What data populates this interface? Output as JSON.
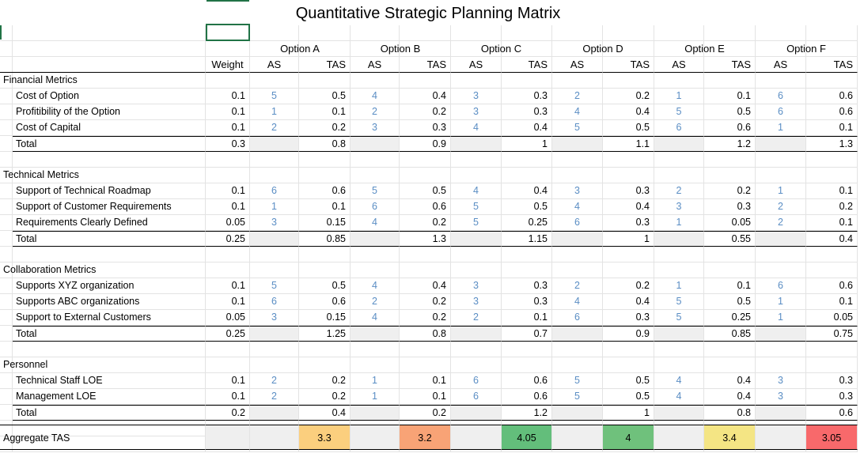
{
  "title": "Quantitative Strategic Planning Matrix",
  "header": {
    "weight": "Weight",
    "as": "AS",
    "tas": "TAS",
    "options": [
      "Option A",
      "Option B",
      "Option C",
      "Option D",
      "Option E",
      "Option F"
    ]
  },
  "colors": {
    "as_text": "#5b8ec4",
    "total_fill": "#efefef",
    "selection_border": "#217346"
  },
  "sections": [
    {
      "name": "Financial Metrics",
      "rows": [
        {
          "label": "Cost of Option",
          "weight": "0.1",
          "as": [
            "5",
            "4",
            "3",
            "2",
            "1",
            "6"
          ],
          "tas": [
            "0.5",
            "0.4",
            "0.3",
            "0.2",
            "0.1",
            "0.6"
          ]
        },
        {
          "label": "Profitibility of the Option",
          "weight": "0.1",
          "as": [
            "1",
            "2",
            "3",
            "4",
            "5",
            "6"
          ],
          "tas": [
            "0.1",
            "0.2",
            "0.3",
            "0.4",
            "0.5",
            "0.6"
          ]
        },
        {
          "label": "Cost of Capital",
          "weight": "0.1",
          "as": [
            "2",
            "3",
            "4",
            "5",
            "6",
            "1"
          ],
          "tas": [
            "0.2",
            "0.3",
            "0.4",
            "0.5",
            "0.6",
            "0.1"
          ]
        }
      ],
      "total": {
        "label": "Total",
        "weight": "0.3",
        "tas": [
          "0.8",
          "0.9",
          "1",
          "1.1",
          "1.2",
          "1.3"
        ]
      }
    },
    {
      "name": "Technical Metrics",
      "rows": [
        {
          "label": "Support of Technical Roadmap",
          "weight": "0.1",
          "as": [
            "6",
            "5",
            "4",
            "3",
            "2",
            "1"
          ],
          "tas": [
            "0.6",
            "0.5",
            "0.4",
            "0.3",
            "0.2",
            "0.1"
          ]
        },
        {
          "label": "Support of Customer Requirements",
          "weight": "0.1",
          "as": [
            "1",
            "6",
            "5",
            "4",
            "3",
            "2"
          ],
          "tas": [
            "0.1",
            "0.6",
            "0.5",
            "0.4",
            "0.3",
            "0.2"
          ]
        },
        {
          "label": "Requirements Clearly Defined",
          "weight": "0.05",
          "as": [
            "3",
            "4",
            "5",
            "6",
            "1",
            "2"
          ],
          "tas": [
            "0.15",
            "0.2",
            "0.25",
            "0.3",
            "0.05",
            "0.1"
          ]
        }
      ],
      "total": {
        "label": "Total",
        "weight": "0.25",
        "tas": [
          "0.85",
          "1.3",
          "1.15",
          "1",
          "0.55",
          "0.4"
        ]
      }
    },
    {
      "name": "Collaboration Metrics",
      "rows": [
        {
          "label": "Supports XYZ organization",
          "weight": "0.1",
          "as": [
            "5",
            "4",
            "3",
            "2",
            "1",
            "6"
          ],
          "tas": [
            "0.5",
            "0.4",
            "0.3",
            "0.2",
            "0.1",
            "0.6"
          ]
        },
        {
          "label": "Supports ABC organizations",
          "weight": "0.1",
          "as": [
            "6",
            "2",
            "3",
            "4",
            "5",
            "1"
          ],
          "tas": [
            "0.6",
            "0.2",
            "0.3",
            "0.4",
            "0.5",
            "0.1"
          ]
        },
        {
          "label": "Support to External Customers",
          "weight": "0.05",
          "as": [
            "3",
            "4",
            "2",
            "6",
            "5",
            "1"
          ],
          "tas": [
            "0.15",
            "0.2",
            "0.1",
            "0.3",
            "0.25",
            "0.05"
          ]
        }
      ],
      "total": {
        "label": "Total",
        "weight": "0.25",
        "tas": [
          "1.25",
          "0.8",
          "0.7",
          "0.9",
          "0.85",
          "0.75"
        ]
      }
    },
    {
      "name": "Personnel",
      "rows": [
        {
          "label": "Technical Staff LOE",
          "weight": "0.1",
          "as": [
            "2",
            "1",
            "6",
            "5",
            "4",
            "3"
          ],
          "tas": [
            "0.2",
            "0.1",
            "0.6",
            "0.5",
            "0.4",
            "0.3"
          ]
        },
        {
          "label": "Management LOE",
          "weight": "0.1",
          "as": [
            "2",
            "1",
            "6",
            "5",
            "4",
            "3"
          ],
          "tas": [
            "0.2",
            "0.1",
            "0.6",
            "0.5",
            "0.4",
            "0.3"
          ]
        }
      ],
      "total": {
        "label": "Total",
        "weight": "0.2",
        "tas": [
          "0.4",
          "0.2",
          "1.2",
          "1",
          "0.8",
          "0.6"
        ]
      }
    }
  ],
  "aggregate": {
    "label": "Aggregate TAS",
    "tas": [
      "3.3",
      "3.2",
      "4.05",
      "4",
      "3.4",
      "3.05"
    ],
    "colors": [
      "#fbcf7e",
      "#f8a376",
      "#63be7b",
      "#6fc17c",
      "#f4e584",
      "#f8696b"
    ]
  }
}
